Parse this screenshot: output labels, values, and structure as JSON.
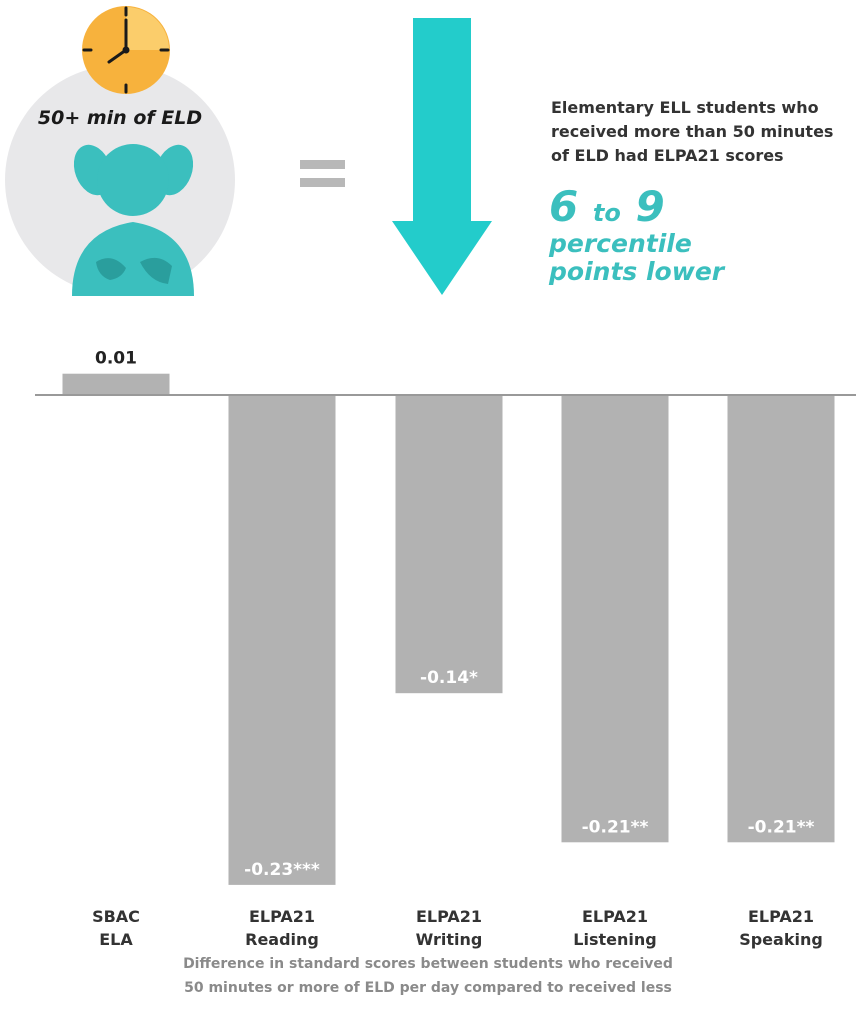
{
  "header": {
    "icon_label": "50+ min of ELD",
    "description_lines": [
      "Elementary ELL students who",
      "received more than 50 minutes",
      "of ELD had ELPA21 scores"
    ],
    "highlight": {
      "from": "6",
      "to_word": "to",
      "to": "9",
      "line1": "percentile",
      "line2": "points lower"
    },
    "icons": [
      "clock-icon",
      "girl-student-icon",
      "equals-icon",
      "down-arrow-icon"
    ]
  },
  "colors": {
    "bar": "#b2b2b2",
    "accent": "#3bbfbe",
    "clock": "#f7b23d",
    "circle_bg": "#e8e8ea",
    "baseline": "#999999"
  },
  "chart_data": {
    "type": "bar",
    "categories": [
      [
        "SBAC",
        "ELA"
      ],
      [
        "ELPA21",
        "Reading"
      ],
      [
        "ELPA21",
        "Writing"
      ],
      [
        "ELPA21",
        "Listening"
      ],
      [
        "ELPA21",
        "Speaking"
      ]
    ],
    "values": [
      0.01,
      -0.23,
      -0.14,
      -0.21,
      -0.21
    ],
    "value_labels": [
      "0.01",
      "-0.23***",
      "-0.14*",
      "-0.21**",
      "-0.21**"
    ],
    "title": "",
    "xlabel": "",
    "ylabel": "",
    "ylim": [
      -0.23,
      0.01
    ],
    "grid": false,
    "caption_lines": [
      "Difference in standard scores between students who received",
      "50 minutes or more of ELD per day compared to received less"
    ]
  }
}
